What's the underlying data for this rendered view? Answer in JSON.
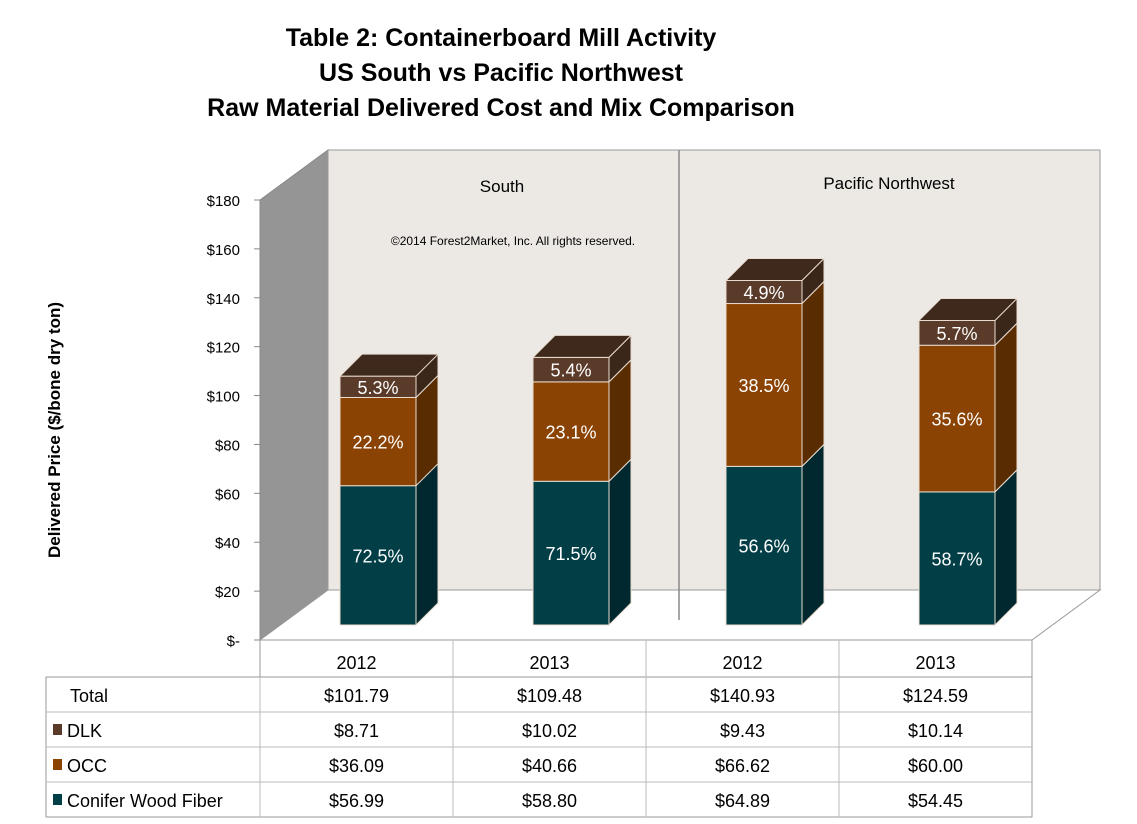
{
  "chart_data": {
    "type": "stacked-bar-3d",
    "title_lines": [
      "Table 2: Containerboard Mill Activity",
      "US South vs Pacific Northwest",
      "Raw Material Delivered Cost and Mix Comparison"
    ],
    "ylabel": "Delivered Price ($/bone dry ton)",
    "ylim": [
      0,
      180
    ],
    "yticks": [
      "$-",
      "$20",
      "$40",
      "$60",
      "$80",
      "$100",
      "$120",
      "$140",
      "$160",
      "$180"
    ],
    "groups": [
      "South",
      "Pacific Northwest"
    ],
    "copyright": "©2014  Forest2Market, Inc. All rights reserved.",
    "categories": [
      "2012",
      "2013",
      "2012",
      "2013"
    ],
    "series": [
      {
        "name": "Conifer Wood Fiber",
        "color": "#023e46",
        "values": [
          56.99,
          58.8,
          64.89,
          54.45
        ],
        "labels": [
          "72.5%",
          "71.5%",
          "56.6%",
          "58.7%"
        ],
        "table": [
          "$56.99",
          "$58.80",
          "$64.89",
          "$54.45"
        ]
      },
      {
        "name": "OCC",
        "color": "#8b4303",
        "values": [
          36.09,
          40.66,
          66.62,
          60.0
        ],
        "labels": [
          "22.2%",
          "23.1%",
          "38.5%",
          "35.6%"
        ],
        "table": [
          "$36.09",
          "$40.66",
          "$66.62",
          "$60.00"
        ]
      },
      {
        "name": "DLK",
        "color": "#5a3a28",
        "values": [
          8.71,
          10.02,
          9.43,
          10.14
        ],
        "labels": [
          "5.3%",
          "5.4%",
          "4.9%",
          "5.7%"
        ],
        "table": [
          "$8.71",
          "$10.02",
          "$9.43",
          "$10.14"
        ]
      }
    ],
    "total": {
      "name": "Total",
      "table": [
        "$101.79",
        "$109.48",
        "$140.93",
        "$124.59"
      ]
    },
    "grid": false
  }
}
